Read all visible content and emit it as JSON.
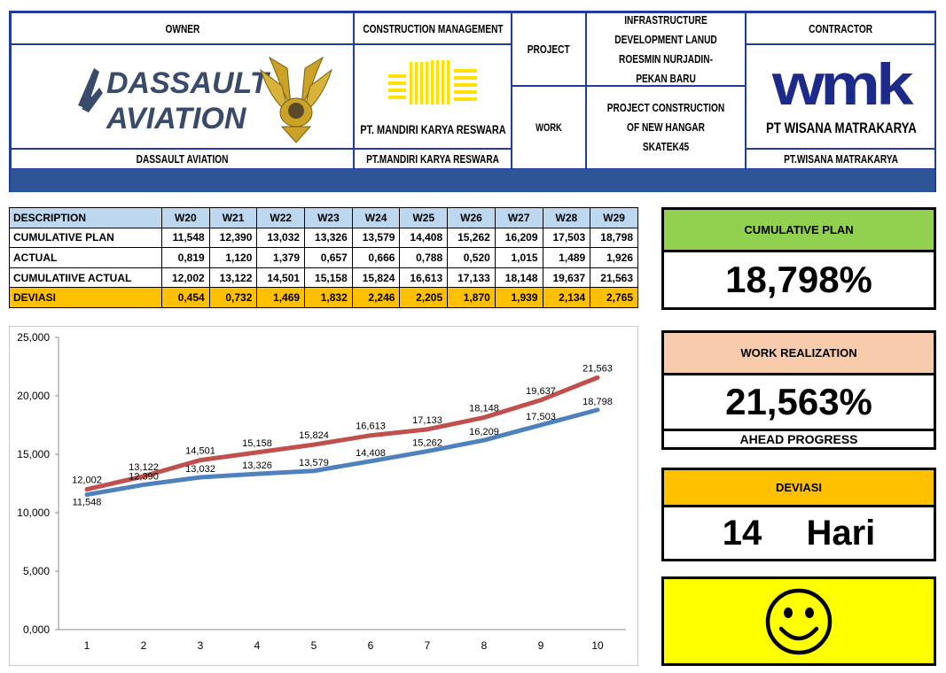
{
  "header": {
    "owner_label": "OWNER",
    "owner_logo_text_line1": "DASSAULT",
    "owner_logo_text_line2": "AVIATION",
    "owner_name": "DASSAULT AVIATION",
    "cm_label": "CONSTRUCTION MANAGEMENT",
    "cm_logo_text": "PT. MANDIRI KARYA RESWARA",
    "cm_name": "PT.MANDIRI KARYA RESWARA",
    "project_label": "PROJECT",
    "project_value": "INFRASTRUCTURE DEVELOPMENT LANUD ROESMIN NURJADIN-PEKAN BARU",
    "work_label": "WORK",
    "work_value": "PROJECT CONSTRUCTION OF NEW HANGAR SKATEK45",
    "contractor_label": "CONTRACTOR",
    "contractor_logo_text": "wmk",
    "contractor_logo_caption": "PT WISANA MATRAKARYA",
    "contractor_name": "PT.WISANA MATRAKARYA"
  },
  "colors": {
    "header_border": "#1f3c9a",
    "band": "#2e5596",
    "table_head": "#bdd7ee",
    "deviasi_row": "#ffc000",
    "plan_line": "#4f81bd",
    "actual_line": "#c0504d",
    "cumulative_plan_title": "#92d050",
    "work_realization_title": "#f8cbad",
    "deviasi_title": "#ffc000",
    "smile_bg": "#ffff00"
  },
  "table": {
    "headers": [
      "DESCRIPTION",
      "W20",
      "W21",
      "W22",
      "W23",
      "W24",
      "W25",
      "W26",
      "W27",
      "W28",
      "W29"
    ],
    "rows": [
      {
        "label": "CUMULATIVE PLAN",
        "values": [
          "11,548",
          "12,390",
          "13,032",
          "13,326",
          "13,579",
          "14,408",
          "15,262",
          "16,209",
          "17,503",
          "18,798"
        ]
      },
      {
        "label": "ACTUAL",
        "values": [
          "0,819",
          "1,120",
          "1,379",
          "0,657",
          "0,666",
          "0,788",
          "0,520",
          "1,015",
          "1,489",
          "1,926"
        ]
      },
      {
        "label": "CUMULATIIVE ACTUAL",
        "values": [
          "12,002",
          "13,122",
          "14,501",
          "15,158",
          "15,824",
          "16,613",
          "17,133",
          "18,148",
          "19,637",
          "21,563"
        ]
      },
      {
        "label": "DEVIASI",
        "values": [
          "0,454",
          "0,732",
          "1,469",
          "1,832",
          "2,246",
          "2,205",
          "1,870",
          "1,939",
          "2,134",
          "2,765"
        ]
      }
    ]
  },
  "chart_data": {
    "type": "line",
    "x": [
      1,
      2,
      3,
      4,
      5,
      6,
      7,
      8,
      9,
      10
    ],
    "xtick_labels": [
      "1",
      "2",
      "3",
      "4",
      "5",
      "6",
      "7",
      "8",
      "9",
      "10"
    ],
    "ylim": [
      0,
      25
    ],
    "yticks": [
      0,
      5,
      10,
      15,
      20,
      25
    ],
    "ytick_labels": [
      "0,000",
      "5,000",
      "10,000",
      "15,000",
      "20,000",
      "25,000"
    ],
    "grid": false,
    "legend": "none",
    "series": [
      {
        "values": [
          11.548,
          12.39,
          13.032,
          13.326,
          13.579,
          14.408,
          15.262,
          16.209,
          17.503,
          18.798
        ],
        "labels": [
          "11,548",
          "12,390",
          "13,032",
          "13,326",
          "13,579",
          "14,408",
          "15,262",
          "16,209",
          "17,503",
          "18,798"
        ],
        "color": "#4f81bd"
      },
      {
        "values": [
          12.002,
          13.122,
          14.501,
          15.158,
          15.824,
          16.613,
          17.133,
          18.148,
          19.637,
          21.563
        ],
        "labels": [
          "12,002",
          "13,122",
          "14,501",
          "15,158",
          "15,824",
          "16,613",
          "17,133",
          "18,148",
          "19,637",
          "21,563"
        ],
        "color": "#c0504d"
      }
    ]
  },
  "panels": {
    "cumulative_plan_title": "CUMULATIVE PLAN",
    "cumulative_plan_value": "18,798%",
    "work_realization_title": "WORK REALIZATION",
    "work_realization_value": "21,563%",
    "work_realization_status": "AHEAD PROGRESS",
    "deviasi_title": "DEVIASI",
    "deviasi_value": "14  Hari",
    "status_icon": "smiley-face-icon"
  }
}
